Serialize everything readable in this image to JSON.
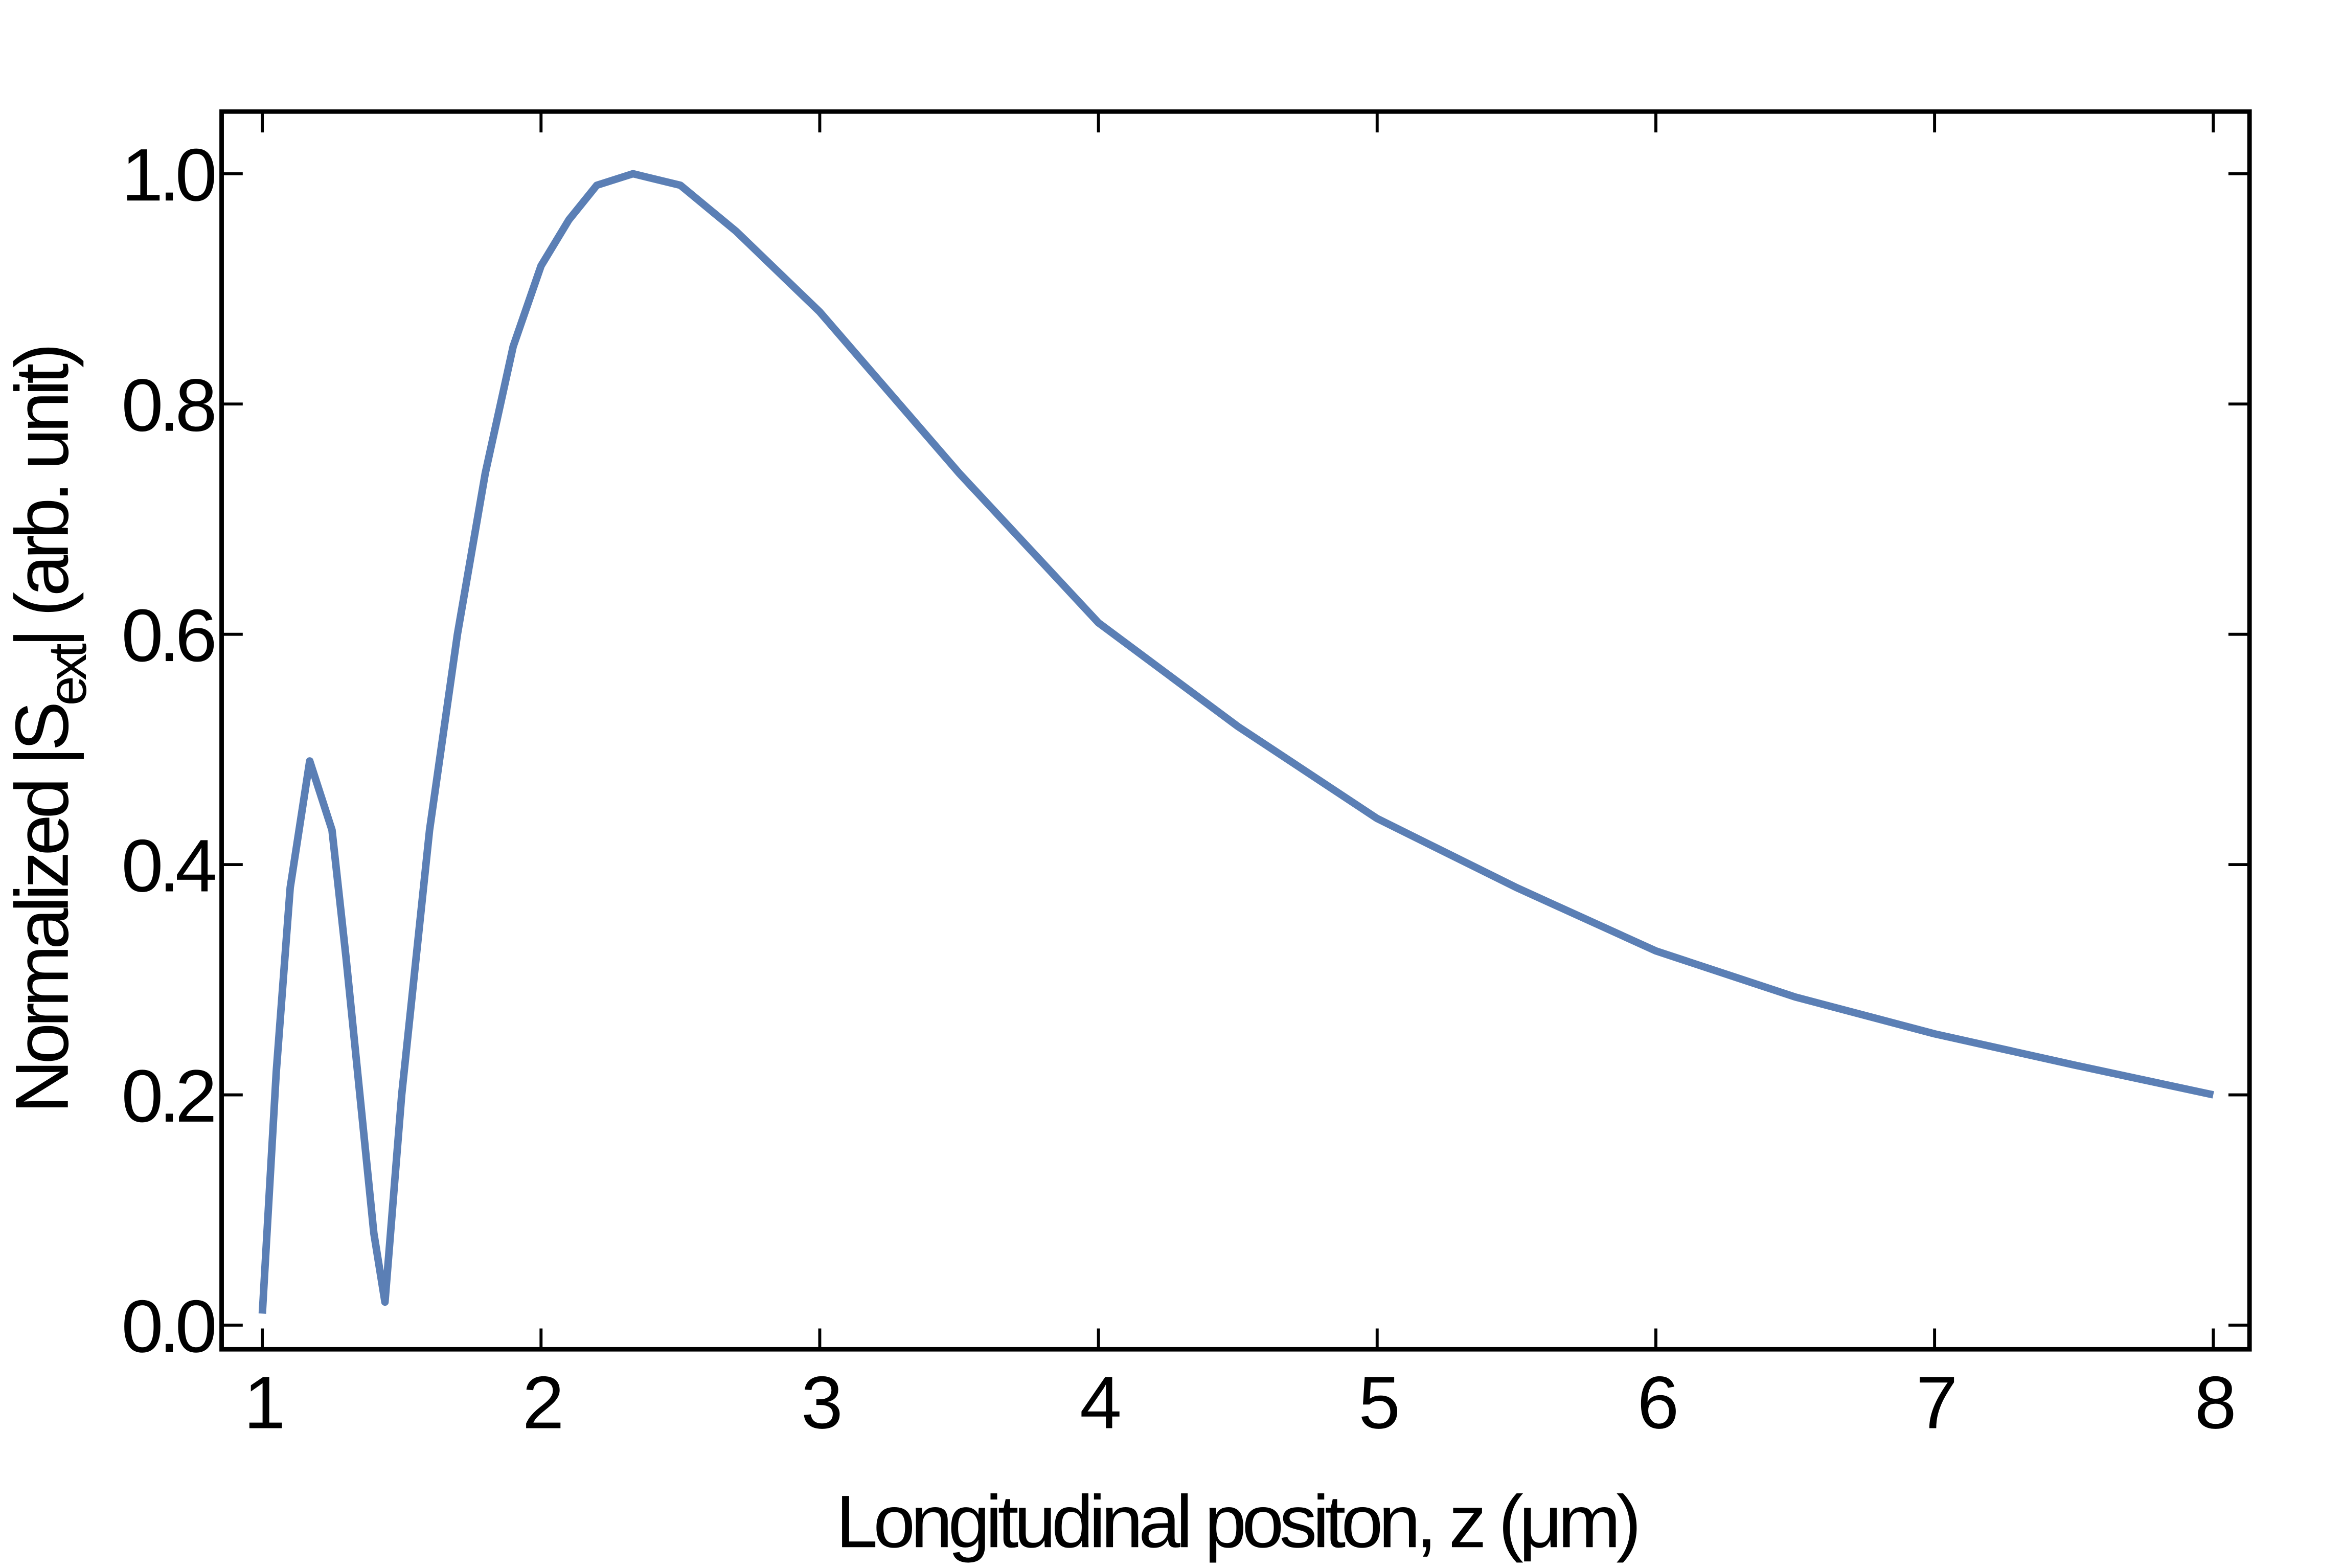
{
  "chart_data": {
    "type": "line",
    "xlabel": "Longitudinal positon, z (μm)",
    "ylabel_parts": [
      "Normalized |S",
      "ext",
      "| (arb. unit)"
    ],
    "x": [
      1.0,
      1.05,
      1.1,
      1.17,
      1.25,
      1.3,
      1.35,
      1.4,
      1.44,
      1.5,
      1.6,
      1.7,
      1.8,
      1.9,
      2.0,
      2.1,
      2.2,
      2.33,
      2.5,
      2.7,
      3.0,
      3.5,
      4.0,
      4.5,
      5.0,
      5.5,
      6.0,
      6.5,
      7.0,
      7.5,
      8.0
    ],
    "series": [
      {
        "color": "#5b7fb5",
        "values": [
          0.01,
          0.22,
          0.38,
          0.49,
          0.43,
          0.32,
          0.2,
          0.08,
          0.02,
          0.2,
          0.43,
          0.6,
          0.74,
          0.85,
          0.92,
          0.96,
          0.99,
          1.0,
          0.99,
          0.95,
          0.88,
          0.74,
          0.61,
          0.52,
          0.44,
          0.38,
          0.325,
          0.285,
          0.253,
          0.226,
          0.2
        ]
      }
    ],
    "xlim": [
      0.854,
      8.13
    ],
    "ylim": [
      -0.021,
      1.054
    ],
    "xticks": [
      1,
      2,
      3,
      4,
      5,
      6,
      7,
      8
    ],
    "yticks": [
      {
        "value": 0,
        "label": "0.0"
      },
      {
        "value": 0.2,
        "label": "0.2"
      },
      {
        "value": 0.4,
        "label": "0.4"
      },
      {
        "value": 0.6,
        "label": "0.6"
      },
      {
        "value": 0.8,
        "label": "0.8"
      },
      {
        "value": 1.0,
        "label": "1.0"
      }
    ]
  }
}
